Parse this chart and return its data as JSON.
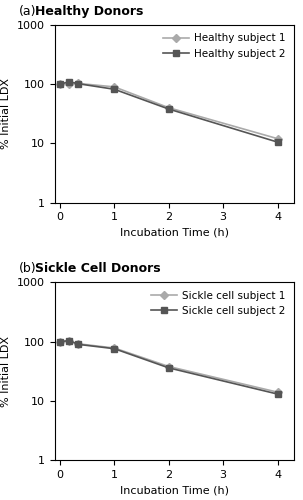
{
  "panel_a": {
    "title_label": "(a)",
    "title_text": "  Healthy Donors",
    "subject1": {
      "label": "Healthy subject 1",
      "x": [
        0,
        0.167,
        0.333,
        1.0,
        2.0,
        4.0
      ],
      "y": [
        100,
        100,
        103,
        90,
        40,
        12
      ],
      "color": "#aaaaaa",
      "marker": "D",
      "markersize": 4,
      "linewidth": 1.2
    },
    "subject2": {
      "label": "Healthy subject 2",
      "x": [
        0,
        0.167,
        0.333,
        1.0,
        2.0,
        4.0
      ],
      "y": [
        100,
        110,
        102,
        82,
        38,
        10.5
      ],
      "color": "#555555",
      "marker": "s",
      "markersize": 4,
      "linewidth": 1.2
    }
  },
  "panel_b": {
    "title_label": "(b)",
    "title_text": "  Sickle Cell Donors",
    "subject1": {
      "label": "Sickle cell subject 1",
      "x": [
        0,
        0.167,
        0.333,
        1.0,
        2.0,
        4.0
      ],
      "y": [
        100,
        102,
        92,
        78,
        38,
        14
      ],
      "color": "#aaaaaa",
      "marker": "D",
      "markersize": 4,
      "linewidth": 1.2
    },
    "subject2": {
      "label": "Sickle cell subject 2",
      "x": [
        0,
        0.167,
        0.333,
        1.0,
        2.0,
        4.0
      ],
      "y": [
        100,
        104,
        90,
        76,
        36,
        13
      ],
      "color": "#555555",
      "marker": "s",
      "markersize": 4,
      "linewidth": 1.2
    }
  },
  "ylabel": "% Initial LDX",
  "xlabel": "Incubation Time (h)",
  "ylim": [
    1,
    1000
  ],
  "xlim": [
    -0.1,
    4.3
  ],
  "xticks": [
    0,
    1,
    2,
    3,
    4
  ],
  "yticks": [
    1,
    10,
    100,
    1000
  ],
  "ytick_labels": [
    "1",
    "10",
    "100",
    "1000"
  ],
  "background_color": "#ffffff",
  "title_fontsize": 9,
  "label_fontsize": 8,
  "tick_fontsize": 8,
  "legend_fontsize": 7.5
}
